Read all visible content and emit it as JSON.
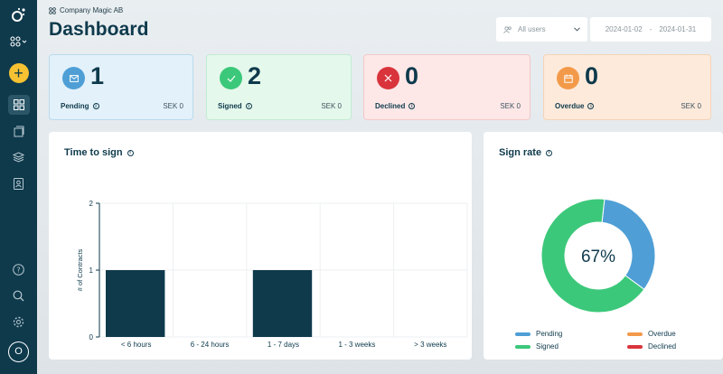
{
  "company": "Company Magic AB",
  "title": "Dashboard",
  "filters": {
    "users": "All users",
    "date_from": "2024-01-02",
    "date_sep": "-",
    "date_to": "2024-01-31"
  },
  "sidebar": {
    "logo": "logo-icon",
    "items": [
      "apps-icon",
      "add-icon",
      "dashboard-icon",
      "documents-icon",
      "templates-icon",
      "contacts-icon"
    ],
    "bottom": [
      "help-icon",
      "search-icon",
      "settings-icon"
    ],
    "avatar": "O"
  },
  "stats": [
    {
      "label": "Pending",
      "count": "1",
      "amount": "SEK 0",
      "bg": "#e3f1fa",
      "border": "#b9dbee",
      "icon_bg": "#4f9fd6"
    },
    {
      "label": "Signed",
      "count": "2",
      "amount": "SEK 0",
      "bg": "#e5f8ec",
      "border": "#c2ebd2",
      "icon_bg": "#3cc87a"
    },
    {
      "label": "Declined",
      "count": "0",
      "amount": "SEK 0",
      "bg": "#fde7e7",
      "border": "#f3c9c9",
      "icon_bg": "#d9343c"
    },
    {
      "label": "Overdue",
      "count": "0",
      "amount": "SEK 0",
      "bg": "#fdeadb",
      "border": "#f5d3b6",
      "icon_bg": "#f39a4a"
    }
  ],
  "time_to_sign": {
    "title": "Time to sign",
    "chart_data": {
      "type": "bar",
      "categories": [
        "< 6 hours",
        "6 - 24 hours",
        "1 - 7 days",
        "1 - 3 weeks",
        "> 3 weeks"
      ],
      "values": [
        1,
        0,
        1,
        0,
        0
      ],
      "ylabel": "# of Contracts",
      "ylim": [
        0,
        2
      ],
      "yticks": [
        "0",
        "1",
        "2"
      ],
      "bar_color": "#0e3a4c"
    }
  },
  "sign_rate": {
    "title": "Sign rate",
    "center_label": "67%",
    "chart_data": {
      "type": "pie",
      "slices": [
        {
          "name": "Pending",
          "value": 1,
          "color": "#4f9fd6"
        },
        {
          "name": "Signed",
          "value": 2,
          "color": "#3cc87a"
        },
        {
          "name": "Overdue",
          "value": 0,
          "color": "#f39a4a"
        },
        {
          "name": "Declined",
          "value": 0,
          "color": "#d9343c"
        }
      ]
    },
    "legend": [
      {
        "name": "Pending",
        "color": "#4f9fd6"
      },
      {
        "name": "Overdue",
        "color": "#f39a4a"
      },
      {
        "name": "Signed",
        "color": "#3cc87a"
      },
      {
        "name": "Declined",
        "color": "#d9343c"
      }
    ]
  }
}
